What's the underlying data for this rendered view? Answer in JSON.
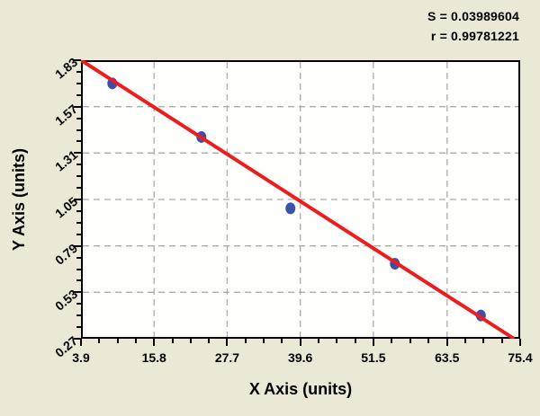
{
  "annotations": {
    "s_label": "S = 0.03989604",
    "r_label": "r = 0.99781221"
  },
  "chart_data": {
    "type": "scatter",
    "title": "",
    "xlabel": "X Axis (units)",
    "ylabel": "Y Axis (units)",
    "xlim": [
      3.9,
      75.4
    ],
    "ylim": [
      0.27,
      1.83
    ],
    "x_tick_labels": [
      "3.9",
      "15.8",
      "27.7",
      "39.6",
      "51.5",
      "63.5",
      "75.4"
    ],
    "y_tick_labels": [
      "1.83",
      "1.57",
      "1.31",
      "1.05",
      "0.79",
      "0.53",
      "0.27"
    ],
    "x_ticks": [
      3.9,
      15.8,
      27.7,
      39.6,
      51.5,
      63.5,
      75.4
    ],
    "y_ticks": [
      1.83,
      1.57,
      1.31,
      1.05,
      0.79,
      0.53,
      0.27
    ],
    "minor_divisions_per_major": 4,
    "grid": "dashed gray lines at inner major ticks",
    "legend": "none",
    "points": [
      {
        "x": 9.0,
        "y": 1.7
      },
      {
        "x": 23.5,
        "y": 1.4
      },
      {
        "x": 38.0,
        "y": 1.0
      },
      {
        "x": 55.0,
        "y": 0.69
      },
      {
        "x": 69.0,
        "y": 0.4
      }
    ],
    "fit_line": {
      "x1": 3.9,
      "y1": 1.83,
      "x2": 74.4,
      "y2": 0.27
    },
    "stats": {
      "S": "0.03989604",
      "r": "0.99781221"
    },
    "colors": {
      "background": "#ebe8d5",
      "plot_background": "#fffffe",
      "axis": "#000000",
      "grid": "#ababab",
      "point": "#3b51a8",
      "fit_line": "#ee1c1c",
      "text": "#000000"
    }
  }
}
